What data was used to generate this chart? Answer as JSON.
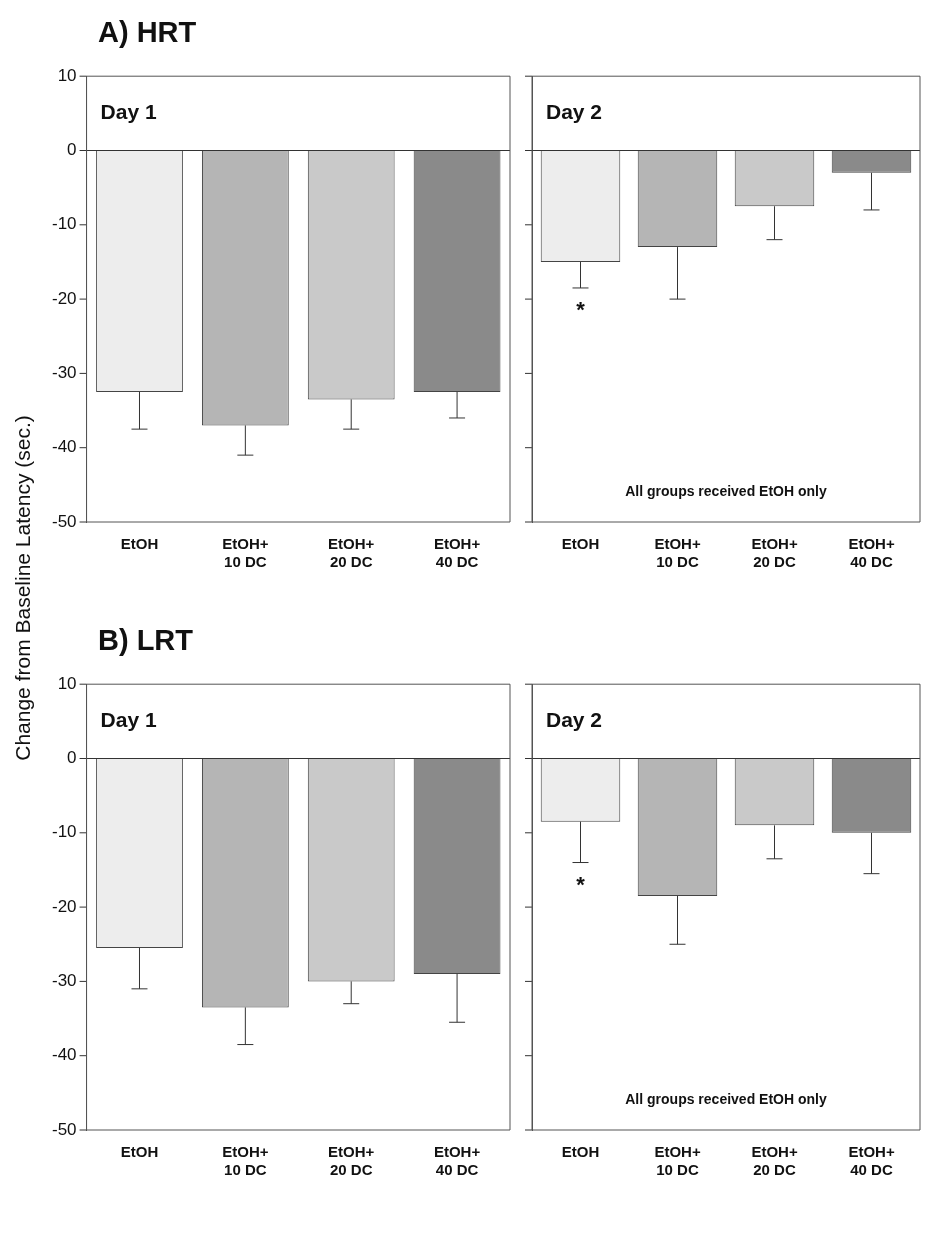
{
  "chart_data": [
    {
      "type": "bar",
      "title": "A) HRT",
      "ylabel": "Change from Baseline Latency (sec.)",
      "annotations": [
        "Day 1"
      ],
      "categories": [
        "EtOH",
        "EtOH+ 10 DC",
        "EtOH+ 20 DC",
        "EtOH+ 40 DC"
      ],
      "values": [
        -32.5,
        -37,
        -33.5,
        -32.5
      ],
      "errors": [
        [
          -37.5,
          -32.5
        ],
        [
          -41,
          -37
        ],
        [
          -37.5,
          -33.5
        ],
        [
          -36,
          -32.5
        ]
      ],
      "colors": [
        "#ededed",
        "#b5b5b5",
        "#c9c9c9",
        "#8a8a8a"
      ],
      "ylim": [
        -50,
        10
      ],
      "yticks": [
        -50,
        -40,
        -30,
        -20,
        -10,
        0,
        10
      ]
    },
    {
      "type": "bar",
      "annotations": [
        "Day 2",
        "All groups received EtOH only",
        "*"
      ],
      "categories": [
        "EtOH",
        "EtOH+ 10 DC",
        "EtOH+ 20 DC",
        "EtOH+ 40 DC"
      ],
      "values": [
        -15,
        -13,
        -7.5,
        -3
      ],
      "errors": [
        [
          -18.5,
          -15
        ],
        [
          -20,
          -13
        ],
        [
          -12,
          -7.5
        ],
        [
          -8,
          -3
        ]
      ],
      "colors": [
        "#ededed",
        "#b5b5b5",
        "#c9c9c9",
        "#8a8a8a"
      ],
      "ylim": [
        -50,
        10
      ],
      "yticks": [
        -50,
        -40,
        -30,
        -20,
        -10,
        0,
        10
      ],
      "tick_labels": "x"
    },
    {
      "type": "bar",
      "title": "B) LRT",
      "annotations": [
        "Day 1"
      ],
      "categories": [
        "EtOH",
        "EtOH+ 10 DC",
        "EtOH+ 20 DC",
        "EtOH+ 40 DC"
      ],
      "values": [
        -25.5,
        -33.5,
        -30,
        -29
      ],
      "errors": [
        [
          -31,
          -25.5
        ],
        [
          -38.5,
          -33.5
        ],
        [
          -33,
          -30
        ],
        [
          -35.5,
          -29
        ]
      ],
      "colors": [
        "#ededed",
        "#b5b5b5",
        "#c9c9c9",
        "#8a8a8a"
      ],
      "ylim": [
        -50,
        10
      ],
      "yticks": [
        -50,
        -40,
        -30,
        -20,
        -10,
        0,
        10
      ]
    },
    {
      "type": "bar",
      "annotations": [
        "Day 2",
        "All groups received EtOH only",
        "*"
      ],
      "categories": [
        "EtOH",
        "EtOH+ 10 DC",
        "EtOH+ 20 DC",
        "EtOH+ 40 DC"
      ],
      "values": [
        -8.5,
        -18.5,
        -9,
        -10
      ],
      "errors": [
        [
          -14,
          -8.5
        ],
        [
          -25,
          -18.5
        ],
        [
          -13.5,
          -9
        ],
        [
          -15.5,
          -10
        ]
      ],
      "colors": [
        "#ededed",
        "#b5b5b5",
        "#c9c9c9",
        "#8a8a8a"
      ],
      "ylim": [
        -50,
        10
      ],
      "yticks": [
        -50,
        -40,
        -30,
        -20,
        -10,
        0,
        10
      ],
      "tick_labels": "x"
    }
  ]
}
